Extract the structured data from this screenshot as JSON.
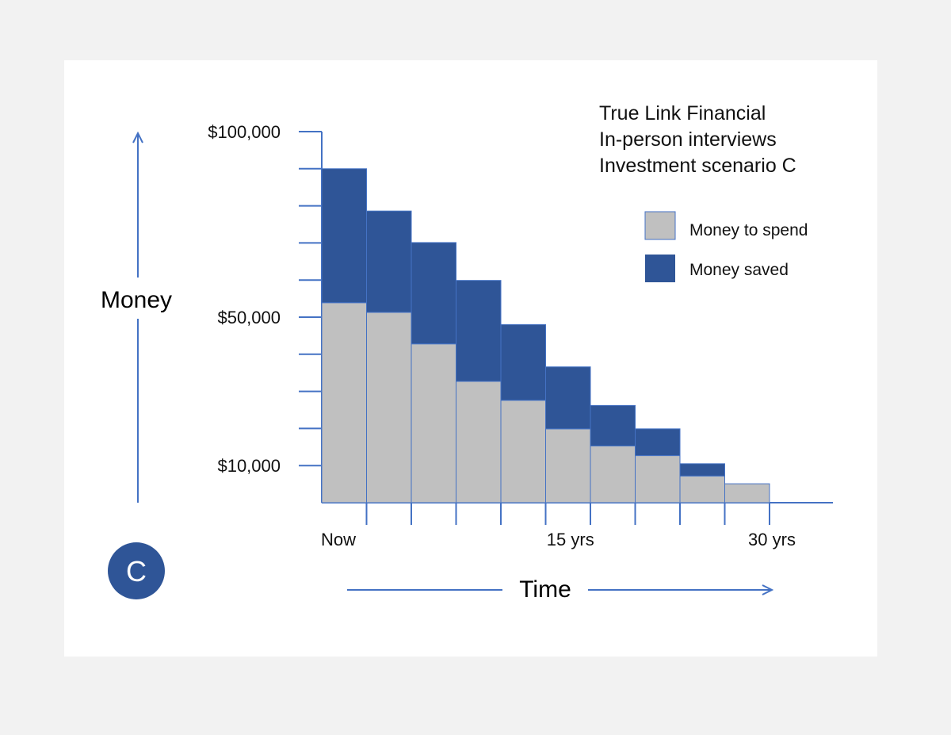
{
  "info": {
    "lines": [
      "True Link Financial",
      "In-person interviews",
      "Investment scenario C"
    ]
  },
  "badge": {
    "label": "C"
  },
  "colors": {
    "spend": "#c0c0c0",
    "saved": "#2f5597",
    "axis": "#4472c4",
    "badge": "#2f5597"
  },
  "chart_data": {
    "type": "bar",
    "stacked": true,
    "ylabel": "Money",
    "xlabel": "Time",
    "y_tick_labels": [
      {
        "value": 100000,
        "label": "$100,000"
      },
      {
        "value": 50000,
        "label": "$50,000"
      },
      {
        "value": 10000,
        "label": "$10,000"
      }
    ],
    "x_tick_labels": [
      {
        "label": "Now",
        "index": 0
      },
      {
        "label": "15 yrs",
        "index": 5.5
      },
      {
        "label": "30 yrs",
        "index": 10
      }
    ],
    "ylim": [
      0,
      100000
    ],
    "grid": false,
    "legend_position": "top-right",
    "categories": [
      "1",
      "2",
      "3",
      "4",
      "5",
      "6",
      "7",
      "8",
      "9",
      "10"
    ],
    "series": [
      {
        "name": "Money to spend",
        "color": "#c0c0c0",
        "values": [
          53900,
          51300,
          42800,
          32700,
          27600,
          19900,
          15300,
          12700,
          7200,
          5100
        ]
      },
      {
        "name": "Money saved",
        "color": "#2f5597",
        "values": [
          36100,
          27300,
          27300,
          27200,
          20400,
          16700,
          10900,
          7200,
          3300,
          0
        ]
      }
    ]
  }
}
